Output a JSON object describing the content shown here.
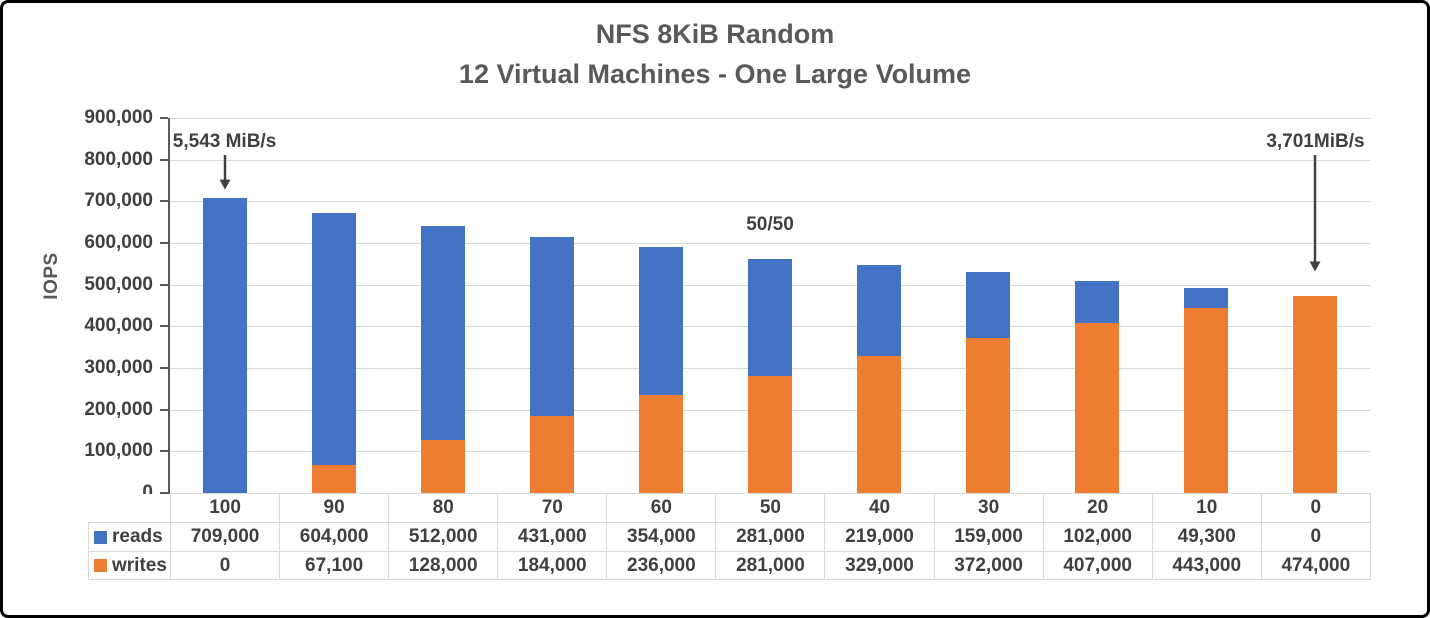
{
  "chart_data": {
    "type": "bar",
    "stacked": true,
    "title": "NFS 8KiB Random",
    "subtitle": "12 Virtual Machines - One Large Volume",
    "ylabel": "IOPS",
    "xlabel": "",
    "ylim": [
      0,
      900000
    ],
    "ytick_step": 100000,
    "ytick_labels": [
      "0",
      "100,000",
      "200,000",
      "300,000",
      "400,000",
      "500,000",
      "600,000",
      "700,000",
      "800,000",
      "900,000"
    ],
    "grid": true,
    "legend_position": "table-left",
    "categories": [
      "100",
      "90",
      "80",
      "70",
      "60",
      "50",
      "40",
      "30",
      "20",
      "10",
      "0"
    ],
    "series": [
      {
        "name": "reads",
        "color": "#4472C4",
        "values": [
          709000,
          604000,
          512000,
          431000,
          354000,
          281000,
          219000,
          159000,
          102000,
          49300,
          0
        ],
        "labels": [
          "709,000",
          "604,000",
          "512,000",
          "431,000",
          "354,000",
          "281,000",
          "219,000",
          "159,000",
          "102,000",
          "49,300",
          "0"
        ]
      },
      {
        "name": "writes",
        "color": "#ED7D31",
        "values": [
          0,
          67100,
          128000,
          184000,
          236000,
          281000,
          329000,
          372000,
          407000,
          443000,
          474000
        ],
        "labels": [
          "0",
          "67,100",
          "128,000",
          "184,000",
          "236,000",
          "281,000",
          "329,000",
          "372,000",
          "407,000",
          "443,000",
          "474,000"
        ]
      }
    ],
    "stack_order": [
      "writes",
      "reads"
    ],
    "annotations": [
      {
        "text": "5,543 MiB/s",
        "bar_index": 0,
        "arrow": "short"
      },
      {
        "text": "50/50",
        "bar_index": 5,
        "arrow": "none"
      },
      {
        "text": "3,701MiB/s",
        "bar_index": 10,
        "arrow": "long"
      }
    ]
  },
  "palette": {
    "reads_blue": "#4472C4",
    "writes_orange": "#ED7D31",
    "title_gray": "#595959",
    "value_gray": "#404040",
    "gridline_gray": "#D9D9D9",
    "table_border_gray": "#D9D9D9",
    "arrow_gray": "#404040",
    "frame_black": "#000000"
  }
}
